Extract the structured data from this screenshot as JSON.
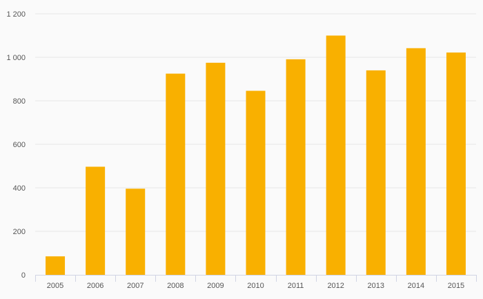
{
  "chart_data": {
    "type": "bar",
    "title": "",
    "xlabel": "",
    "ylabel": "",
    "categories": [
      "2005",
      "2006",
      "2007",
      "2008",
      "2009",
      "2010",
      "2011",
      "2012",
      "2013",
      "2014",
      "2015"
    ],
    "values": [
      85,
      497,
      396,
      925,
      975,
      846,
      991,
      1100,
      940,
      1042,
      1022
    ],
    "ylim": [
      0,
      1200
    ],
    "yticks": [
      0,
      200,
      400,
      600,
      800,
      1000,
      1200
    ],
    "ytick_labels": [
      "0",
      "200",
      "400",
      "600",
      "800",
      "1 000",
      "1 200"
    ],
    "grid": true,
    "legend": "none",
    "colors": {
      "bar": "#f9b000",
      "background": "#fafafa"
    }
  }
}
